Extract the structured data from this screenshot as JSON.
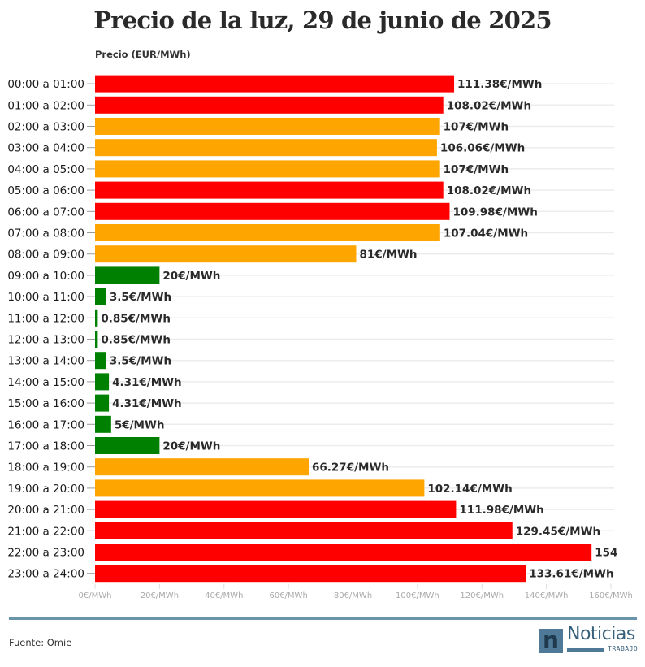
{
  "chart_data": {
    "type": "bar",
    "orientation": "horizontal",
    "title": "Precio de la luz, 29 de junio de 2025",
    "ylabel": "Precio (EUR/MWh)",
    "xlabel": "",
    "xlim": [
      0,
      160
    ],
    "xticks": [
      0,
      20,
      40,
      60,
      80,
      100,
      120,
      140,
      160
    ],
    "xtick_labels": [
      "0€/MWh",
      "20€/MWh",
      "40€/MWh",
      "60€/MWh",
      "80€/MWh",
      "100€/MWh",
      "120€/MWh",
      "140€/MWh",
      "160€/MWh"
    ],
    "grid": true,
    "legend": "none",
    "categories": [
      "00:00 a 01:00",
      "01:00 a 02:00",
      "02:00 a 03:00",
      "03:00 a 04:00",
      "04:00 a 05:00",
      "05:00 a 06:00",
      "06:00 a 07:00",
      "07:00 a 08:00",
      "08:00 a 09:00",
      "09:00 a 10:00",
      "10:00 a 11:00",
      "11:00 a 12:00",
      "12:00 a 13:00",
      "13:00 a 14:00",
      "14:00 a 15:00",
      "15:00 a 16:00",
      "16:00 a 17:00",
      "17:00 a 18:00",
      "18:00 a 19:00",
      "19:00 a 20:00",
      "20:00 a 21:00",
      "21:00 a 22:00",
      "22:00 a 23:00",
      "23:00 a 24:00"
    ],
    "values": [
      111.38,
      108.02,
      107,
      106.06,
      107,
      108.02,
      109.98,
      107.04,
      81,
      20,
      3.5,
      0.85,
      0.85,
      3.5,
      4.31,
      4.31,
      5,
      20,
      66.27,
      102.14,
      111.98,
      129.45,
      154,
      133.61
    ],
    "value_labels": [
      "111.38€/MWh",
      "108.02€/MWh",
      "107€/MWh",
      "106.06€/MWh",
      "107€/MWh",
      "108.02€/MWh",
      "109.98€/MWh",
      "107.04€/MWh",
      "81€/MWh",
      "20€/MWh",
      "3.5€/MWh",
      "0.85€/MWh",
      "0.85€/MWh",
      "3.5€/MWh",
      "4.31€/MWh",
      "4.31€/MWh",
      "5€/MWh",
      "20€/MWh",
      "66.27€/MWh",
      "102.14€/MWh",
      "111.98€/MWh",
      "129.45€/MWh",
      "154",
      "133.61€/MWh"
    ],
    "levels": [
      "high",
      "high",
      "mid",
      "mid",
      "mid",
      "high",
      "high",
      "mid",
      "mid",
      "low",
      "low",
      "low",
      "low",
      "low",
      "low",
      "low",
      "low",
      "low",
      "mid",
      "mid",
      "high",
      "high",
      "high",
      "high"
    ],
    "level_colors": {
      "high": "#fe0000",
      "mid": "#fea500",
      "low": "#008001"
    }
  },
  "footer": {
    "source": "Fuente: Omie",
    "logo_word": "Noticias",
    "logo_sub": "TRABAJO",
    "logo_mark": "n"
  }
}
